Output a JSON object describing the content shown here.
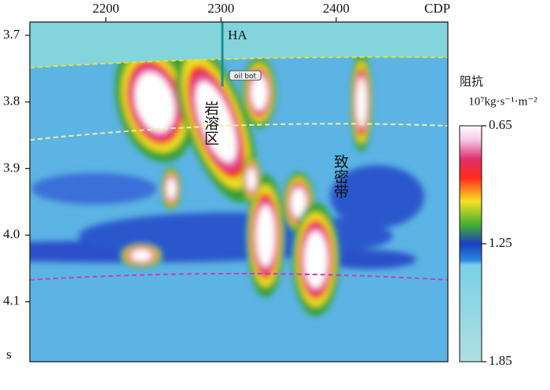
{
  "chart_data": {
    "type": "seismic-section",
    "x_label": "CDP",
    "y_label": "s",
    "xlim": [
      2134,
      2497
    ],
    "xticks": [
      2200,
      2300,
      2400
    ],
    "ylim": [
      3.68,
      4.19
    ],
    "yticks": [
      3.7,
      3.8,
      3.9,
      {
        "value": 4.0,
        "label": "4.0"
      },
      4.1
    ],
    "well_label": "HA",
    "well_marker": "oil bot",
    "annotations": [
      "岩溶区",
      "致密带"
    ],
    "colorbar": {
      "title": "阻抗",
      "unit": "10⁷kg·s⁻¹·m⁻²",
      "lim": [
        0.65,
        1.85
      ],
      "ticks": [
        0.65,
        1.25,
        1.85
      ]
    }
  }
}
